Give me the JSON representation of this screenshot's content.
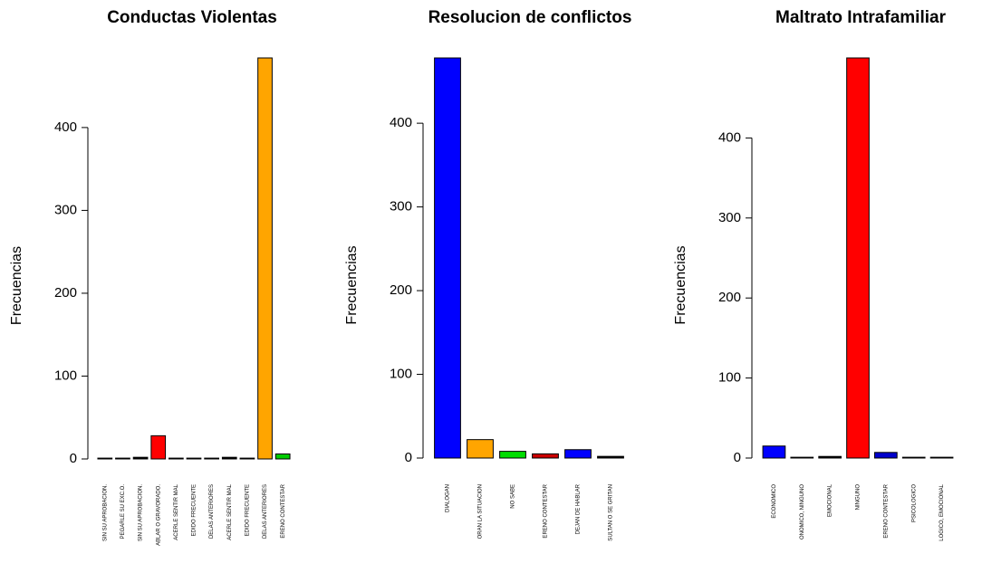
{
  "chart_data": [
    {
      "type": "bar",
      "title": "Conductas Violentas",
      "ylabel": "Frecuencias",
      "categories": [
        "SIN SU APROBACION.",
        "PEGARLE SU EXC.O.",
        "SIN SU APROBACION.",
        "ABLAR O GRAVORADO.",
        "ACERLE SENTIR MAL",
        "EDIDO FRECUENTE",
        "DELAS ANTERIORES",
        "ACERLE SENTIR MAL",
        "EDIDO FRECUENTE",
        "DELAS ANTERIORES",
        "ERENO CONTESTAR"
      ],
      "values": [
        1,
        1,
        2,
        28,
        1,
        1,
        1,
        2,
        1,
        484,
        6
      ],
      "colors": [
        "#0000ff",
        "#000000",
        "#000000",
        "#ff0000",
        "#000000",
        "#000000",
        "#000000",
        "#000000",
        "#000000",
        "#ffa500",
        "#00cc00"
      ],
      "ylim": [
        0,
        484
      ],
      "yticks": [
        0,
        100,
        200,
        300,
        400
      ]
    },
    {
      "type": "bar",
      "title": "Resolucion de conflictos",
      "ylabel": "Frecuencias",
      "categories": [
        "DIALOGAN",
        "ORAN LA SITUACION",
        "NO SABE",
        "ERENO CONTESTAR",
        "DEJAN DE HABLAR",
        "SULTAN O SE GRITAN"
      ],
      "values": [
        478,
        22,
        8,
        5,
        10,
        2
      ],
      "colors": [
        "#0000ff",
        "#ffa500",
        "#00dd00",
        "#cc0000",
        "#0000ff",
        "#000000"
      ],
      "ylim": [
        0,
        478
      ],
      "yticks": [
        0,
        100,
        200,
        300,
        400
      ]
    },
    {
      "type": "bar",
      "title": "Maltrato Intrafamiliar",
      "ylabel": "Frecuencias",
      "categories": [
        "ECONOMICO",
        "ONOMICO, NINGUNO",
        "EMOCIONAL",
        "NINGUNO",
        "ERENO CONTESTAR",
        "PSICOLOGICO",
        "LOGICO, EMOCIONAL"
      ],
      "values": [
        15,
        1,
        2,
        500,
        7,
        1,
        1
      ],
      "colors": [
        "#0000ff",
        "#000000",
        "#000000",
        "#ff0000",
        "#0000cc",
        "#000000",
        "#000000"
      ],
      "ylim": [
        0,
        500
      ],
      "yticks": [
        0,
        100,
        200,
        300,
        400
      ]
    }
  ]
}
